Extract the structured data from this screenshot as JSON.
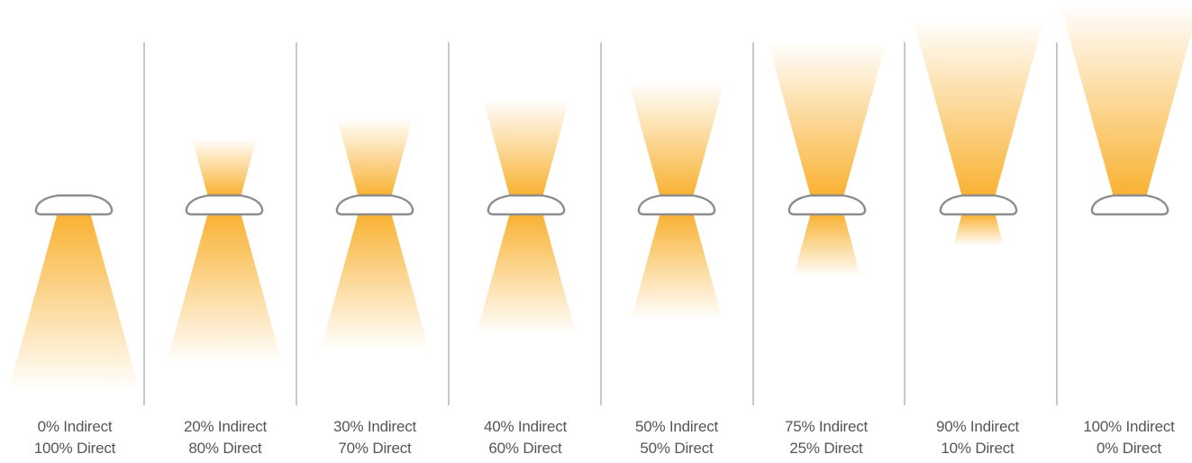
{
  "panels": [
    {
      "indirect_label": "0% Indirect",
      "direct_label": "100% Direct",
      "indirect": 0,
      "direct": 100
    },
    {
      "indirect_label": "20% Indirect",
      "direct_label": "80% Direct",
      "indirect": 20,
      "direct": 80
    },
    {
      "indirect_label": "30% Indirect",
      "direct_label": "70% Direct",
      "indirect": 30,
      "direct": 70
    },
    {
      "indirect_label": "40% Indirect",
      "direct_label": "60% Direct",
      "indirect": 40,
      "direct": 60
    },
    {
      "indirect_label": "50% Indirect",
      "direct_label": "50% Direct",
      "indirect": 50,
      "direct": 50
    },
    {
      "indirect_label": "75% Indirect",
      "direct_label": "25% Direct",
      "indirect": 75,
      "direct": 25
    },
    {
      "indirect_label": "90% Indirect",
      "direct_label": "10% Direct",
      "indirect": 90,
      "direct": 10
    },
    {
      "indirect_label": "100% Indirect",
      "direct_label": "0% Direct",
      "indirect": 100,
      "direct": 0
    }
  ],
  "colors": {
    "beam": "#f9b233",
    "fixture_stroke": "#8c8c8c",
    "fixture_fill": "#ffffff",
    "divider": "#c8c8c8",
    "text": "#555555"
  },
  "icons": {
    "fixture": "luminaire-icon",
    "beam": "light-beam-icon"
  }
}
